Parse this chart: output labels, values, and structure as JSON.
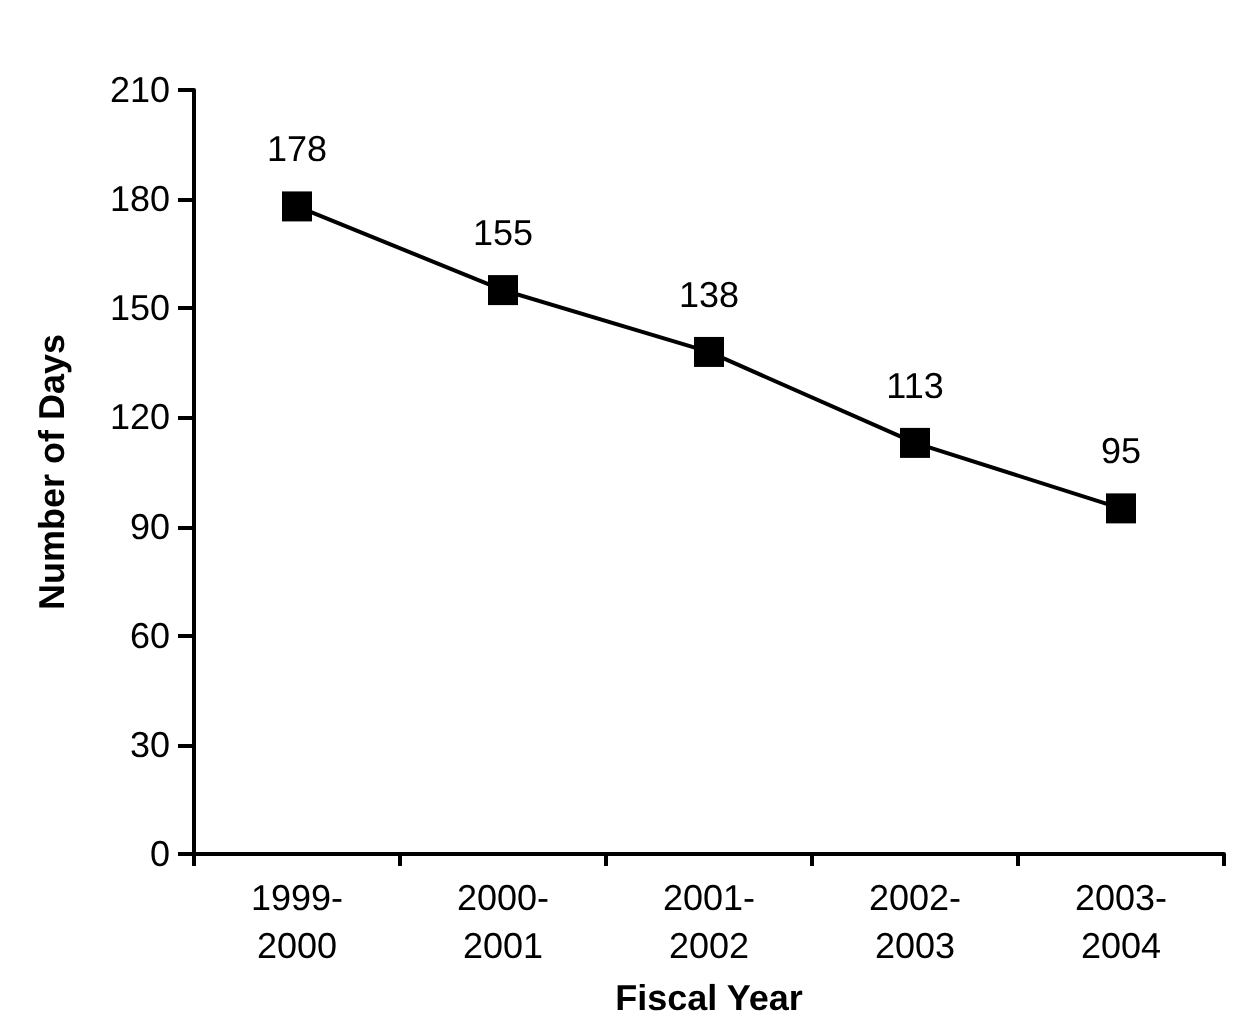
{
  "chart_data": {
    "type": "line",
    "xlabel": "Fiscal Year",
    "ylabel": "Number of Days",
    "categories": [
      "1999-2000",
      "2000-2001",
      "2001-2002",
      "2002-2003",
      "2003-2004"
    ],
    "series": [
      {
        "color": "#000000",
        "values": [
          178,
          155,
          138,
          113,
          95
        ]
      }
    ],
    "ylim": [
      0,
      210
    ],
    "yticks": [
      0,
      30,
      60,
      90,
      120,
      150,
      180,
      210
    ],
    "grid": false,
    "marker": "square",
    "line_style": "solid",
    "data_labels": true
  }
}
